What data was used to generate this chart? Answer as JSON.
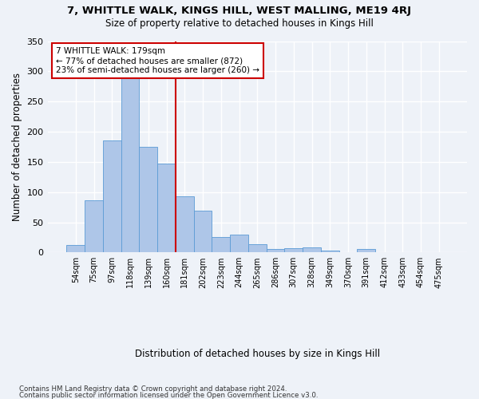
{
  "title": "7, WHITTLE WALK, KINGS HILL, WEST MALLING, ME19 4RJ",
  "subtitle": "Size of property relative to detached houses in Kings Hill",
  "xlabel": "Distribution of detached houses by size in Kings Hill",
  "ylabel": "Number of detached properties",
  "bin_labels": [
    "54sqm",
    "75sqm",
    "97sqm",
    "118sqm",
    "139sqm",
    "160sqm",
    "181sqm",
    "202sqm",
    "223sqm",
    "244sqm",
    "265sqm",
    "286sqm",
    "307sqm",
    "328sqm",
    "349sqm",
    "370sqm",
    "391sqm",
    "412sqm",
    "433sqm",
    "454sqm",
    "475sqm"
  ],
  "bar_heights": [
    13,
    86,
    185,
    289,
    175,
    147,
    93,
    69,
    26,
    30,
    14,
    6,
    7,
    9,
    3,
    0,
    6,
    0,
    0,
    0,
    0
  ],
  "bar_color": "#aec6e8",
  "bar_edge_color": "#5b9bd5",
  "property_label": "7 WHITTLE WALK: 179sqm",
  "annotation_line1": "← 77% of detached houses are smaller (872)",
  "annotation_line2": "23% of semi-detached houses are larger (260) →",
  "vline_color": "#cc0000",
  "vline_bin_index": 6,
  "annotation_box_color": "#ffffff",
  "annotation_box_edge": "#cc0000",
  "ylim": [
    0,
    340
  ],
  "yticks": [
    0,
    50,
    100,
    150,
    200,
    250,
    300,
    350
  ],
  "footer1": "Contains HM Land Registry data © Crown copyright and database right 2024.",
  "footer2": "Contains public sector information licensed under the Open Government Licence v3.0.",
  "background_color": "#eef2f8",
  "grid_color": "#ffffff"
}
